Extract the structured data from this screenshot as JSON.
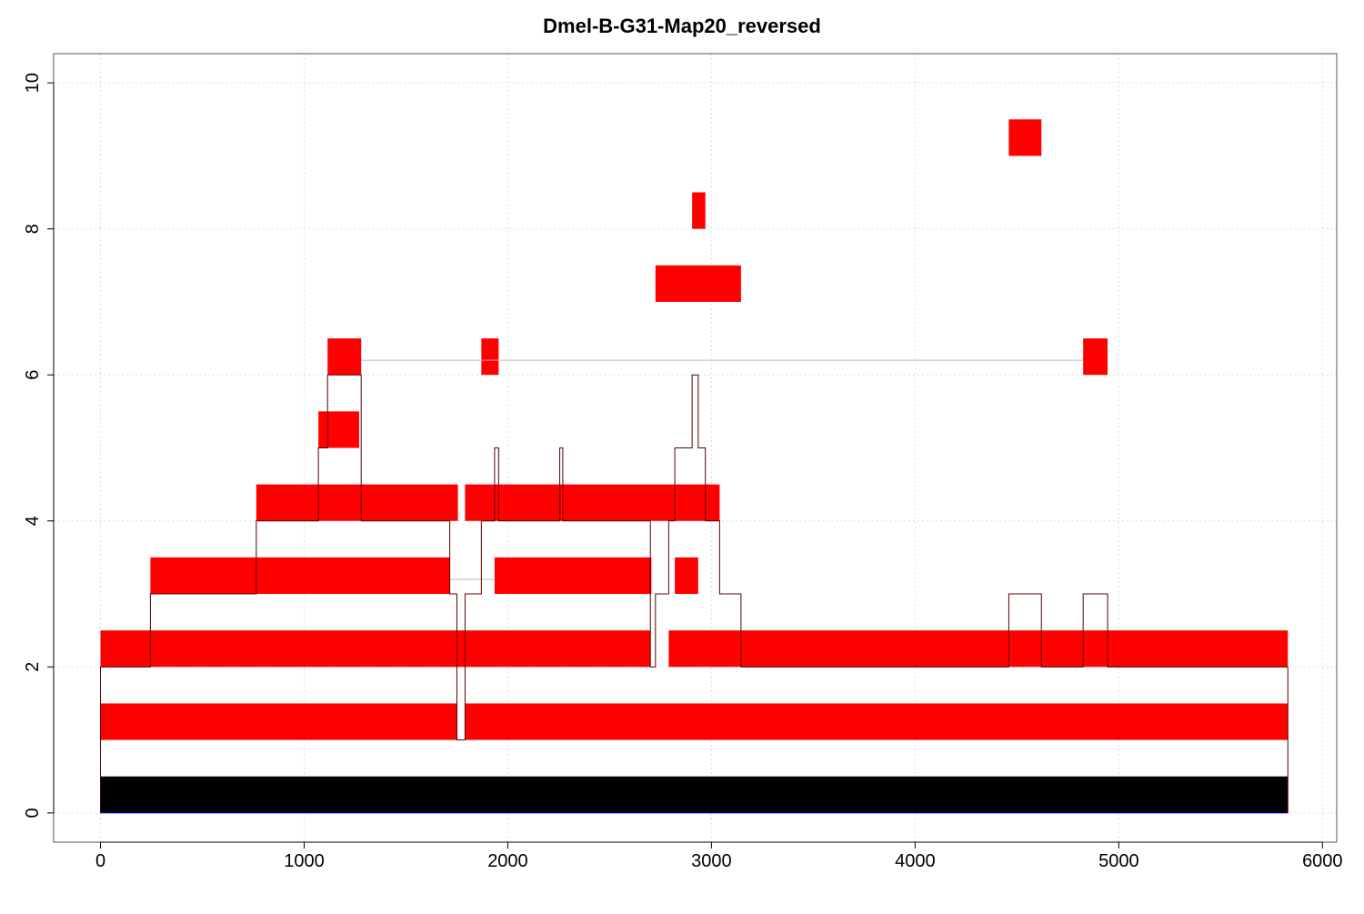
{
  "chart_data": {
    "type": "bar",
    "title": "Dmel-B-G31-Map20_reversed",
    "xlabel": "",
    "ylabel": "",
    "xlim": [
      -230,
      6070
    ],
    "ylim": [
      -0.4,
      10.4
    ],
    "xticks": [
      0,
      1000,
      2000,
      3000,
      4000,
      5000,
      6000
    ],
    "xtick_labels": [
      "0",
      "1000",
      "2000",
      "3000",
      "4000",
      "5000",
      "6000"
    ],
    "yticks": [
      0,
      2,
      4,
      6,
      8,
      10
    ],
    "ytick_labels": [
      "0",
      "2",
      "4",
      "6",
      "8",
      "10"
    ],
    "grid": true,
    "colors": {
      "feature": "#ff0000",
      "reference": "#000000",
      "coverage": "#550000",
      "connector": "#bbbbbb"
    },
    "reference_bar": {
      "start": 0,
      "end": 5830,
      "y0": 0,
      "y1": 0.5
    },
    "features": [
      {
        "start": 0,
        "end": 1750,
        "y0": 1.0,
        "y1": 1.5
      },
      {
        "start": 1790,
        "end": 5830,
        "y0": 1.0,
        "y1": 1.5
      },
      {
        "start": 0,
        "end": 2700,
        "y0": 2.0,
        "y1": 2.5
      },
      {
        "start": 2790,
        "end": 5830,
        "y0": 2.0,
        "y1": 2.5
      },
      {
        "start": 245,
        "end": 1715,
        "y0": 3.0,
        "y1": 3.5
      },
      {
        "start": 1935,
        "end": 2705,
        "y0": 3.0,
        "y1": 3.5
      },
      {
        "start": 2820,
        "end": 2935,
        "y0": 3.0,
        "y1": 3.5
      },
      {
        "start": 765,
        "end": 1755,
        "y0": 4.0,
        "y1": 4.5
      },
      {
        "start": 1790,
        "end": 3040,
        "y0": 4.0,
        "y1": 4.5
      },
      {
        "start": 1070,
        "end": 1270,
        "y0": 5.0,
        "y1": 5.5
      },
      {
        "start": 1115,
        "end": 1280,
        "y0": 6.0,
        "y1": 6.5
      },
      {
        "start": 1870,
        "end": 1955,
        "y0": 6.0,
        "y1": 6.5
      },
      {
        "start": 4825,
        "end": 4945,
        "y0": 6.0,
        "y1": 6.5
      },
      {
        "start": 2725,
        "end": 3145,
        "y0": 7.0,
        "y1": 7.5
      },
      {
        "start": 2905,
        "end": 2970,
        "y0": 8.0,
        "y1": 8.5
      },
      {
        "start": 4460,
        "end": 4620,
        "y0": 9.0,
        "y1": 9.5
      }
    ],
    "connectors": [
      {
        "start": 1280,
        "end": 4825,
        "y": 6.2
      },
      {
        "start": 1715,
        "end": 1935,
        "y": 3.2
      }
    ],
    "coverage_steps": [
      [
        0,
        2
      ],
      [
        245,
        3
      ],
      [
        765,
        4
      ],
      [
        1070,
        5
      ],
      [
        1115,
        6
      ],
      [
        1270,
        6
      ],
      [
        1280,
        4
      ],
      [
        1715,
        3
      ],
      [
        1750,
        1
      ],
      [
        1790,
        3
      ],
      [
        1870,
        4
      ],
      [
        1935,
        5
      ],
      [
        1955,
        4
      ],
      [
        2255,
        5
      ],
      [
        2270,
        4
      ],
      [
        2700,
        2
      ],
      [
        2725,
        3
      ],
      [
        2790,
        4
      ],
      [
        2820,
        5
      ],
      [
        2905,
        6
      ],
      [
        2935,
        5
      ],
      [
        2970,
        4
      ],
      [
        3040,
        3
      ],
      [
        3145,
        2
      ],
      [
        4460,
        3
      ],
      [
        4620,
        2
      ],
      [
        4825,
        3
      ],
      [
        4945,
        2
      ],
      [
        5830,
        0
      ]
    ]
  }
}
